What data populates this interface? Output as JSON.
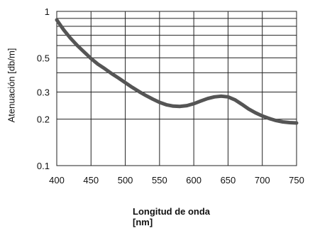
{
  "chart_data": {
    "type": "line",
    "title": "",
    "xlabel_line1": "Longitud de onda",
    "xlabel_line2": "[nm]",
    "ylabel": "Atenuación [db/m]",
    "x_scale": "linear",
    "y_scale": "log",
    "xlim": [
      400,
      750
    ],
    "ylim": [
      0.1,
      1
    ],
    "x_ticks": [
      "400",
      "450",
      "500",
      "550",
      "600",
      "650",
      "700",
      "750"
    ],
    "y_tick_labels": [
      "1",
      "0.5",
      "0.3",
      "0.2",
      "0.1"
    ],
    "y_tick_values": [
      1,
      0.5,
      0.3,
      0.2,
      0.1
    ],
    "grid": true,
    "legend": "none",
    "line_color": "#555555",
    "series": [
      {
        "x": [
          400,
          410,
          420,
          430,
          440,
          450,
          460,
          470,
          480,
          490,
          500,
          510,
          520,
          530,
          540,
          550,
          560,
          570,
          580,
          590,
          600,
          610,
          620,
          630,
          640,
          650,
          660,
          670,
          680,
          690,
          700,
          710,
          720,
          730,
          740,
          750
        ],
        "y": [
          0.88,
          0.76,
          0.67,
          0.6,
          0.545,
          0.495,
          0.455,
          0.425,
          0.395,
          0.37,
          0.345,
          0.322,
          0.302,
          0.285,
          0.27,
          0.257,
          0.248,
          0.243,
          0.242,
          0.245,
          0.252,
          0.262,
          0.272,
          0.279,
          0.282,
          0.279,
          0.267,
          0.25,
          0.233,
          0.22,
          0.21,
          0.202,
          0.196,
          0.192,
          0.19,
          0.189
        ]
      }
    ]
  }
}
